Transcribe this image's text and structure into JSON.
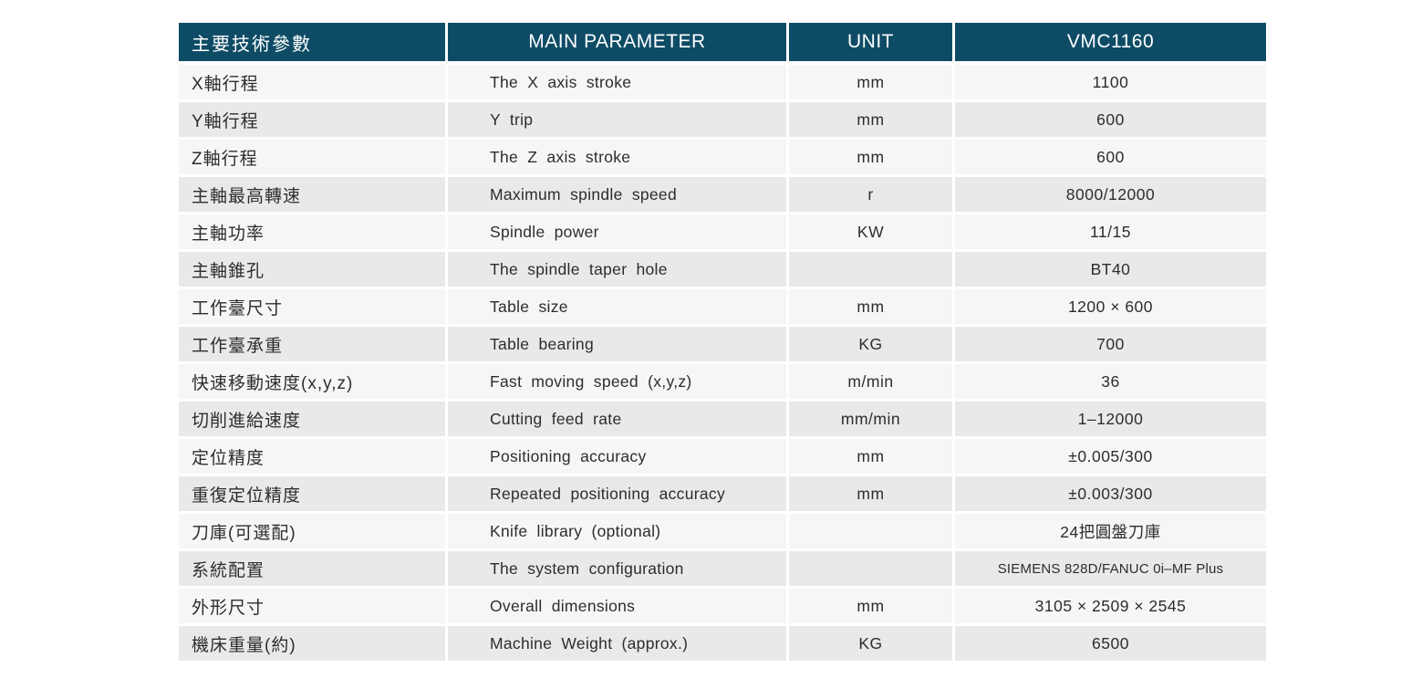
{
  "colors": {
    "header_bg": "#0e4c66",
    "header_text": "#ffffff",
    "row_light": "#f6f6f6",
    "row_dark": "#e9e9e9",
    "body_text": "#2d2d2d"
  },
  "header": {
    "param_cn": "主要技術參數",
    "param_en": "MAIN PARAMETER",
    "unit": "UNIT",
    "model": "VMC1160"
  },
  "rows": [
    {
      "cn": "X軸行程",
      "en": "The X axis stroke",
      "unit": "mm",
      "value": "1100"
    },
    {
      "cn": "Y軸行程",
      "en": "Y trip",
      "unit": "mm",
      "value": "600"
    },
    {
      "cn": "Z軸行程",
      "en": "The Z axis stroke",
      "unit": "mm",
      "value": "600"
    },
    {
      "cn": "主軸最高轉速",
      "en": "Maximum spindle speed",
      "unit": "r",
      "value": "8000/12000"
    },
    {
      "cn": "主軸功率",
      "en": "Spindle power",
      "unit": "KW",
      "value": "11/15"
    },
    {
      "cn": "主軸錐孔",
      "en": "The spindle taper hole",
      "unit": "",
      "value": "BT40"
    },
    {
      "cn": "工作臺尺寸",
      "en": "Table size",
      "unit": "mm",
      "value": "1200 × 600"
    },
    {
      "cn": "工作臺承重",
      "en": "Table bearing",
      "unit": "KG",
      "value": "700"
    },
    {
      "cn": "快速移動速度(x,y,z)",
      "en": "Fast moving speed (x,y,z)",
      "unit": "m/min",
      "value": "36"
    },
    {
      "cn": "切削進給速度",
      "en": "Cutting feed rate",
      "unit": "mm/min",
      "value": "1–12000"
    },
    {
      "cn": "定位精度",
      "en": "Positioning accuracy",
      "unit": "mm",
      "value": "±0.005/300"
    },
    {
      "cn": "重復定位精度",
      "en": "Repeated positioning accuracy",
      "unit": "mm",
      "value": "±0.003/300"
    },
    {
      "cn": "刀庫(可選配)",
      "en": "Knife library (optional)",
      "unit": "",
      "value": "24把圓盤刀庫"
    },
    {
      "cn": "系統配置",
      "en": "The system configuration",
      "unit": "",
      "value": "SIEMENS 828D/FANUC 0i–MF Plus"
    },
    {
      "cn": "外形尺寸",
      "en": "Overall dimensions",
      "unit": "mm",
      "value": "3105 × 2509 × 2545"
    },
    {
      "cn": "機床重量(約)",
      "en": "Machine Weight (approx.)",
      "unit": "KG",
      "value": "6500"
    }
  ]
}
